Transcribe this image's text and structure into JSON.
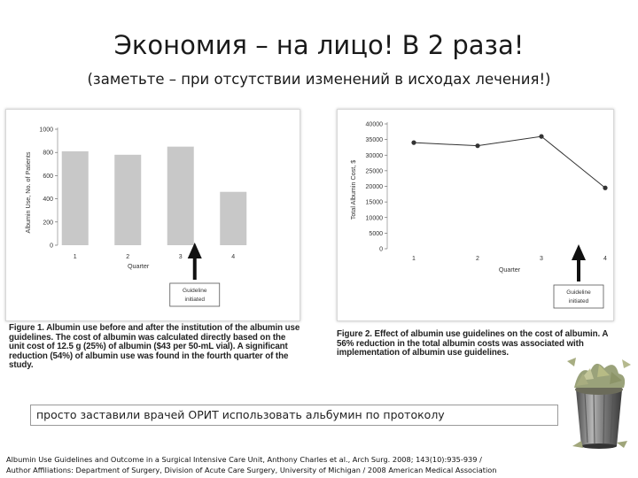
{
  "slide": {
    "title": "Экономия – на лицо! В 2 раза!",
    "subtitle": "(заметьте – при отсутствии изменений в исходах лечения!)",
    "note": "просто заставили врачей ОРИТ использовать альбумин по протоколу",
    "citation_line1": "Albumin Use Guidelines and Outcome in a Surgical Intensive Care Unit, Anthony Charles et al., Arch Surg. 2008; 143(10):935-939 /",
    "citation_line2": "Author Affiliations: Department of Surgery, Division of Acute Care Surgery, University of Michigan / 2008 American Medical Association"
  },
  "figure1": {
    "caption_label": "Figure 1.",
    "caption_text": " Albumin use before and after the institution of the albumin use guidelines. The cost of albumin was calculated directly based on the unit cost of 12.5 g (25%) of albumin ($43 per 50-mL vial). A significant reduction (54%) of albumin use was found in the fourth quarter of the study."
  },
  "figure2": {
    "caption_label": "Figure 2.",
    "caption_text": " Effect of albumin use guidelines on the cost of albumin. A 56% reduction in the total albumin costs was associated with implementation of albumin use guidelines."
  },
  "chart_data": [
    {
      "type": "bar",
      "categories": [
        "1",
        "2",
        "3",
        "4"
      ],
      "values": [
        810,
        780,
        850,
        460
      ],
      "xlabel": "Quarter",
      "ylabel": "Albumin Use, No. of Patients",
      "ylim": [
        0,
        1000
      ],
      "yticks": [
        0,
        200,
        400,
        600,
        800,
        1000
      ],
      "ytick_labels": [
        "0",
        "200",
        "400",
        "600",
        "800",
        "1000"
      ],
      "annotation": {
        "category": "3",
        "line1": "Guideline",
        "line2": "initiated"
      },
      "bar_color": "#c8c8c8"
    },
    {
      "type": "line",
      "categories": [
        "1",
        "2",
        "3",
        "4"
      ],
      "values": [
        34000,
        33000,
        36000,
        19500
      ],
      "xlabel": "Quarter",
      "ylabel": "Total Albumin Cost, $",
      "ylim": [
        0,
        40000
      ],
      "yticks": [
        0,
        5000,
        10000,
        15000,
        20000,
        25000,
        30000,
        35000,
        40000
      ],
      "ytick_labels": [
        "0",
        "5000",
        "10000",
        "15000",
        "20000",
        "25000",
        "30000",
        "35000",
        "40000"
      ],
      "annotation": {
        "category": "3.5",
        "line1": "Guideline",
        "line2": "initiated"
      },
      "line_color": "#333333"
    }
  ]
}
